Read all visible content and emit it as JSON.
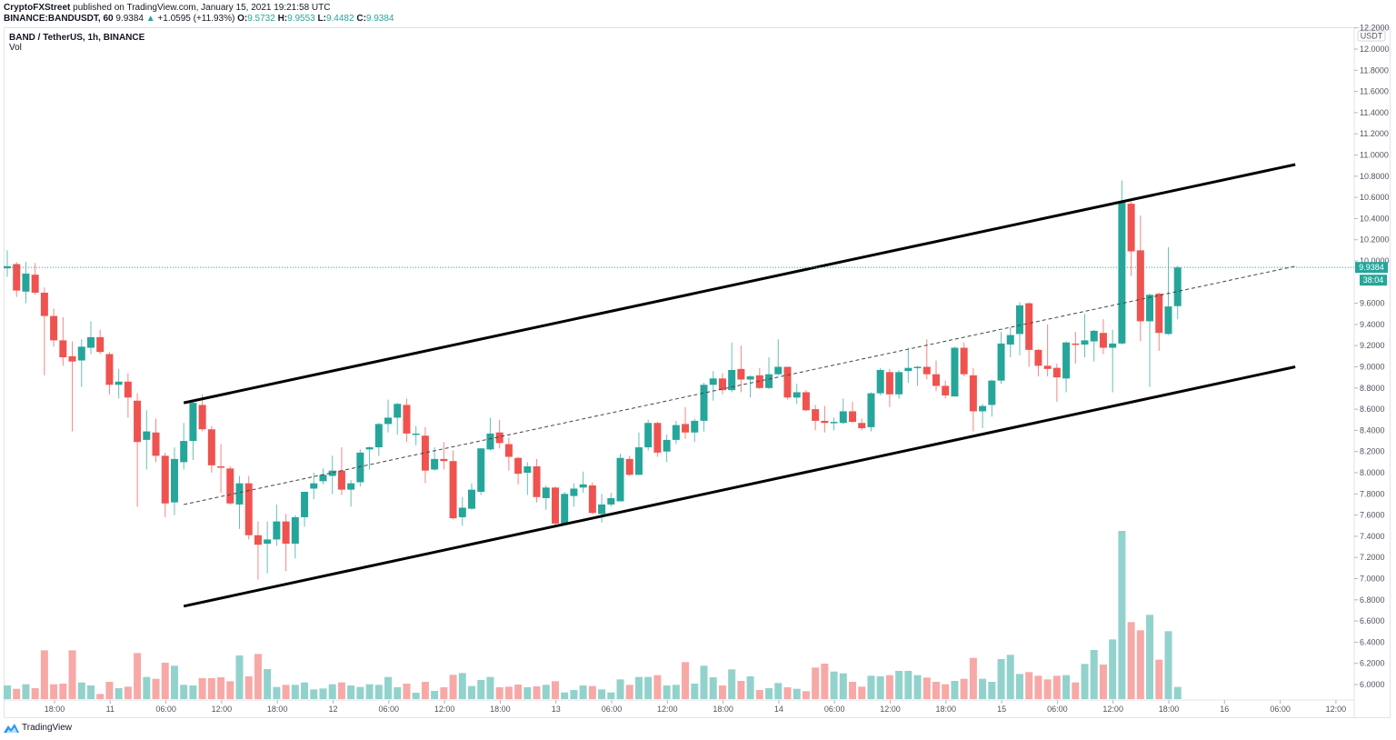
{
  "header": {
    "publisher": "CryptoFXStreet",
    "published_text": "published on TradingView.com, January 15, 2021 19:21:58 UTC",
    "symbol": "BINANCE:BANDUSDT, 60",
    "last": "9.9384",
    "change": "+1.0595 (+11.93%)",
    "o_label": "O:",
    "o": "9.5732",
    "h_label": "H:",
    "h": "9.9553",
    "l_label": "L:",
    "l": "9.4482",
    "c_label": "C:",
    "c": "9.9384"
  },
  "legend": {
    "title": "BAND / TetherUS, 1h, BINANCE",
    "indicator": "Vol"
  },
  "price_axis": {
    "currency": "USDT",
    "last_price_label": "9.9384",
    "countdown": "38:04"
  },
  "footer": {
    "brand": "TradingView",
    "logo_icon": "tradingview-logo-icon"
  },
  "colors": {
    "up": "#26a69a",
    "down": "#ef5350",
    "vol_up": "#92d2cc",
    "vol_down": "#f7a9a7",
    "trendline": "#000000",
    "last_price_line": "#26a69a"
  },
  "chart_data": {
    "type": "candlestick",
    "symbol": "BAND / TetherUS",
    "interval": "1h",
    "x_start": "2021-01-10 13:00",
    "y_ticks": [
      "12.2000",
      "12.0000",
      "11.8000",
      "11.6000",
      "11.4000",
      "11.2000",
      "11.0000",
      "10.8000",
      "10.6000",
      "10.4000",
      "10.2000",
      "10.0000",
      "9.6000",
      "9.4000",
      "9.2000",
      "9.0000",
      "8.8000",
      "8.6000",
      "8.4000",
      "8.2000",
      "8.0000",
      "7.8000",
      "7.6000",
      "7.4000",
      "7.2000",
      "7.0000",
      "6.8000",
      "6.6000",
      "6.4000",
      "6.2000",
      "6.0000"
    ],
    "x_ticks": [
      "18:00",
      "11",
      "06:00",
      "12:00",
      "18:00",
      "12",
      "06:00",
      "12:00",
      "18:00",
      "13",
      "06:00",
      "12:00",
      "18:00",
      "14",
      "06:00",
      "12:00",
      "18:00",
      "15",
      "06:00",
      "12:00",
      "18:00",
      "16",
      "06:00",
      "12:00"
    ],
    "ylim": [
      5.8,
      12.25
    ],
    "grid": false,
    "ohlc_fields": [
      "open",
      "high",
      "low",
      "close"
    ],
    "ohlc": [
      [
        9.93,
        10.1,
        9.85,
        9.95
      ],
      [
        9.97,
        9.99,
        9.66,
        9.72
      ],
      [
        9.71,
        9.99,
        9.6,
        9.88
      ],
      [
        9.87,
        9.98,
        9.68,
        9.7
      ],
      [
        9.7,
        9.75,
        8.92,
        9.48
      ],
      [
        9.48,
        9.55,
        9.19,
        9.25
      ],
      [
        9.25,
        9.47,
        9.01,
        9.09
      ],
      [
        9.1,
        9.24,
        8.39,
        9.05
      ],
      [
        9.06,
        9.26,
        8.81,
        9.19
      ],
      [
        9.18,
        9.43,
        9.12,
        9.28
      ],
      [
        9.28,
        9.35,
        9.12,
        9.14
      ],
      [
        9.12,
        9.14,
        8.74,
        8.83
      ],
      [
        8.83,
        8.98,
        8.7,
        8.86
      ],
      [
        8.86,
        8.94,
        8.52,
        8.71
      ],
      [
        8.68,
        8.75,
        7.68,
        8.29
      ],
      [
        8.31,
        8.59,
        8.03,
        8.39
      ],
      [
        8.38,
        8.51,
        8.1,
        8.16
      ],
      [
        8.16,
        8.19,
        7.58,
        7.71
      ],
      [
        7.72,
        8.24,
        7.6,
        8.13
      ],
      [
        8.1,
        8.47,
        8.03,
        8.3
      ],
      [
        8.3,
        8.69,
        8.12,
        8.66
      ],
      [
        8.64,
        8.74,
        8.39,
        8.41
      ],
      [
        8.41,
        8.44,
        8.0,
        8.07
      ],
      [
        8.06,
        8.27,
        7.81,
        8.05
      ],
      [
        8.04,
        8.06,
        7.7,
        7.71
      ],
      [
        7.7,
        7.97,
        7.47,
        7.9
      ],
      [
        7.9,
        7.97,
        7.37,
        7.41
      ],
      [
        7.41,
        7.54,
        6.99,
        7.32
      ],
      [
        7.33,
        7.54,
        7.05,
        7.37
      ],
      [
        7.37,
        7.7,
        7.31,
        7.54
      ],
      [
        7.54,
        7.61,
        7.07,
        7.33
      ],
      [
        7.33,
        7.6,
        7.19,
        7.58
      ],
      [
        7.58,
        7.82,
        7.49,
        7.82
      ],
      [
        7.85,
        8.0,
        7.75,
        7.9
      ],
      [
        7.92,
        8.04,
        7.89,
        7.98
      ],
      [
        7.97,
        8.16,
        7.8,
        8.02
      ],
      [
        8.02,
        8.24,
        7.79,
        7.84
      ],
      [
        7.84,
        7.93,
        7.68,
        7.9
      ],
      [
        7.91,
        8.22,
        7.87,
        8.19
      ],
      [
        8.22,
        8.25,
        8.03,
        8.24
      ],
      [
        8.24,
        8.47,
        8.16,
        8.46
      ],
      [
        8.46,
        8.69,
        8.38,
        8.52
      ],
      [
        8.52,
        8.66,
        8.36,
        8.65
      ],
      [
        8.64,
        8.7,
        8.29,
        8.37
      ],
      [
        8.36,
        8.44,
        8.26,
        8.37
      ],
      [
        8.35,
        8.43,
        7.9,
        8.02
      ],
      [
        8.03,
        8.24,
        8.02,
        8.13
      ],
      [
        8.13,
        8.29,
        8.03,
        8.11
      ],
      [
        8.11,
        8.21,
        7.56,
        7.57
      ],
      [
        7.58,
        7.77,
        7.5,
        7.67
      ],
      [
        7.66,
        7.9,
        7.65,
        7.84
      ],
      [
        7.82,
        8.23,
        7.79,
        8.23
      ],
      [
        8.22,
        8.52,
        8.21,
        8.37
      ],
      [
        8.38,
        8.5,
        8.23,
        8.28
      ],
      [
        8.27,
        8.33,
        8.02,
        8.15
      ],
      [
        8.14,
        8.15,
        7.89,
        7.99
      ],
      [
        8.0,
        8.1,
        7.79,
        8.06
      ],
      [
        8.06,
        8.13,
        7.72,
        7.77
      ],
      [
        7.76,
        7.88,
        7.65,
        7.86
      ],
      [
        7.86,
        7.87,
        7.51,
        7.52
      ],
      [
        7.52,
        7.82,
        7.51,
        7.8
      ],
      [
        7.78,
        7.9,
        7.68,
        7.85
      ],
      [
        7.86,
        8.01,
        7.81,
        7.89
      ],
      [
        7.88,
        7.91,
        7.61,
        7.62
      ],
      [
        7.61,
        7.8,
        7.53,
        7.7
      ],
      [
        7.7,
        7.81,
        7.68,
        7.76
      ],
      [
        7.73,
        8.18,
        7.73,
        8.14
      ],
      [
        8.13,
        8.16,
        7.97,
        7.98
      ],
      [
        7.98,
        8.38,
        7.98,
        8.24
      ],
      [
        8.24,
        8.5,
        8.21,
        8.47
      ],
      [
        8.47,
        8.48,
        8.15,
        8.19
      ],
      [
        8.2,
        8.36,
        8.1,
        8.31
      ],
      [
        8.31,
        8.49,
        8.27,
        8.45
      ],
      [
        8.46,
        8.62,
        8.32,
        8.38
      ],
      [
        8.38,
        8.51,
        8.29,
        8.49
      ],
      [
        8.49,
        8.85,
        8.39,
        8.83
      ],
      [
        8.83,
        8.96,
        8.68,
        8.89
      ],
      [
        8.89,
        8.94,
        8.74,
        8.78
      ],
      [
        8.78,
        9.23,
        8.76,
        8.97
      ],
      [
        8.98,
        9.2,
        8.76,
        8.88
      ],
      [
        8.88,
        8.92,
        8.71,
        8.91
      ],
      [
        8.92,
        8.99,
        8.79,
        8.8
      ],
      [
        8.8,
        9.09,
        8.79,
        8.93
      ],
      [
        8.93,
        9.26,
        8.92,
        9.0
      ],
      [
        9.0,
        9.0,
        8.69,
        8.71
      ],
      [
        8.71,
        8.84,
        8.65,
        8.76
      ],
      [
        8.76,
        8.78,
        8.58,
        8.59
      ],
      [
        8.6,
        8.64,
        8.4,
        8.49
      ],
      [
        8.49,
        8.63,
        8.38,
        8.47
      ],
      [
        8.47,
        8.52,
        8.4,
        8.48
      ],
      [
        8.47,
        8.7,
        8.46,
        8.58
      ],
      [
        8.58,
        8.67,
        8.47,
        8.48
      ],
      [
        8.47,
        8.51,
        8.4,
        8.42
      ],
      [
        8.43,
        8.76,
        8.39,
        8.75
      ],
      [
        8.75,
        8.99,
        8.73,
        8.97
      ],
      [
        8.95,
        8.98,
        8.62,
        8.74
      ],
      [
        8.74,
        8.97,
        8.7,
        8.95
      ],
      [
        8.96,
        9.18,
        8.85,
        8.99
      ],
      [
        8.99,
        9.01,
        8.82,
        9.0
      ],
      [
        9.0,
        9.26,
        8.88,
        8.93
      ],
      [
        8.93,
        9.06,
        8.77,
        8.82
      ],
      [
        8.82,
        8.87,
        8.7,
        8.73
      ],
      [
        8.72,
        9.19,
        8.72,
        9.18
      ],
      [
        9.18,
        9.23,
        8.91,
        8.93
      ],
      [
        8.92,
        8.99,
        8.39,
        8.58
      ],
      [
        8.58,
        8.65,
        8.42,
        8.63
      ],
      [
        8.64,
        8.88,
        8.53,
        8.87
      ],
      [
        8.87,
        9.33,
        8.84,
        9.22
      ],
      [
        9.21,
        9.37,
        9.09,
        9.3
      ],
      [
        9.31,
        9.61,
        9.11,
        9.58
      ],
      [
        9.6,
        9.61,
        9.0,
        9.16
      ],
      [
        9.16,
        9.17,
        8.91,
        9.01
      ],
      [
        9.01,
        9.4,
        8.91,
        8.98
      ],
      [
        8.99,
        9.03,
        8.67,
        8.9
      ],
      [
        8.89,
        9.24,
        8.76,
        9.23
      ],
      [
        9.22,
        9.33,
        9.03,
        9.21
      ],
      [
        9.21,
        9.5,
        9.09,
        9.25
      ],
      [
        9.24,
        9.35,
        9.05,
        9.34
      ],
      [
        9.32,
        9.45,
        9.12,
        9.18
      ],
      [
        9.18,
        9.35,
        8.76,
        9.22
      ],
      [
        9.22,
        10.76,
        9.21,
        10.55
      ],
      [
        10.54,
        10.56,
        9.86,
        10.09
      ],
      [
        10.1,
        10.43,
        9.24,
        9.43
      ],
      [
        9.43,
        9.69,
        8.81,
        9.68
      ],
      [
        9.69,
        9.7,
        9.15,
        9.32
      ],
      [
        9.31,
        10.13,
        9.3,
        9.57
      ],
      [
        9.5732,
        9.9553,
        9.4482,
        9.9384
      ]
    ],
    "volume_relative": [
      45,
      34,
      49,
      36,
      161,
      49,
      51,
      161,
      55,
      45,
      17,
      57,
      36,
      41,
      152,
      73,
      67,
      120,
      110,
      47,
      45,
      69,
      69,
      72,
      59,
      144,
      75,
      149,
      99,
      40,
      47,
      47,
      55,
      32,
      35,
      49,
      55,
      45,
      40,
      49,
      47,
      73,
      39,
      51,
      21,
      57,
      27,
      39,
      80,
      86,
      43,
      63,
      73,
      39,
      41,
      48,
      39,
      42,
      47,
      59,
      22,
      30,
      45,
      43,
      32,
      22,
      65,
      47,
      73,
      73,
      79,
      45,
      47,
      122,
      51,
      110,
      72,
      45,
      98,
      60,
      75,
      30,
      36,
      53,
      39,
      34,
      26,
      104,
      117,
      91,
      85,
      57,
      41,
      77,
      75,
      79,
      93,
      93,
      79,
      71,
      57,
      49,
      60,
      67,
      136,
      67,
      57,
      132,
      146,
      83,
      89,
      77,
      65,
      77,
      79,
      55,
      116,
      162,
      114,
      197,
      555,
      254,
      227,
      278,
      130,
      224,
      40
    ],
    "last_price": 9.9384,
    "drawings": [
      {
        "name": "channel-upper",
        "style": "solid",
        "from": {
          "time": "2021-01-11 08:00",
          "price": 8.66
        },
        "to": {
          "time": "2021-01-16 07:40",
          "price": 10.91
        }
      },
      {
        "name": "channel-middle",
        "style": "dashed",
        "from": {
          "time": "2021-01-11 08:00",
          "price": 7.7
        },
        "to": {
          "time": "2021-01-16 07:40",
          "price": 9.95
        }
      },
      {
        "name": "channel-lower",
        "style": "solid",
        "from": {
          "time": "2021-01-11 08:00",
          "price": 6.74
        },
        "to": {
          "time": "2021-01-16 07:40",
          "price": 9.0
        }
      }
    ]
  }
}
